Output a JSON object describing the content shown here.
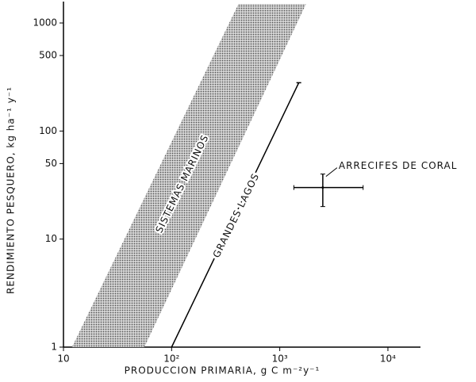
{
  "chart_data": {
    "type": "line",
    "xlabel": "PRODUCCION PRIMARIA, g C m⁻²y⁻¹",
    "ylabel": "RENDIMIENTO PESQUERO, kg ha⁻¹ y⁻¹",
    "log_x": true,
    "log_y": true,
    "xlim": [
      10,
      20000
    ],
    "ylim": [
      1,
      1500
    ],
    "xticks": [
      10,
      {
        "value": 100,
        "label": "10²"
      },
      {
        "value": 1000,
        "label": "10³"
      },
      {
        "value": 10000,
        "label": "10⁴"
      }
    ],
    "yticks": [
      1,
      10,
      50,
      100,
      500,
      1000
    ],
    "color": "#000000",
    "band": {
      "name": "SISTEMAS MARINOS",
      "x_left": [
        12,
        415
      ],
      "x_right": [
        56,
        1750
      ],
      "y": [
        1,
        1500
      ]
    },
    "series": [
      {
        "name": "GRANDES LAGOS",
        "x": [
          100,
          1500
        ],
        "values": [
          1,
          280
        ]
      }
    ],
    "point": {
      "name": "ARRECIFES DE CORAL",
      "x": 2500,
      "y": 30,
      "x_range": [
        1350,
        5900
      ],
      "y_range": [
        20,
        40
      ]
    }
  }
}
